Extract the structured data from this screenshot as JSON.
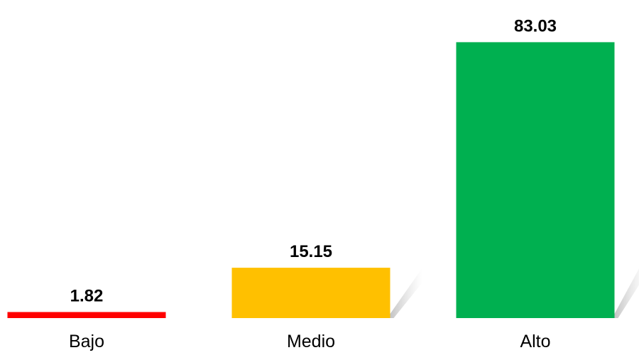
{
  "chart_data": {
    "type": "bar",
    "categories": [
      "Bajo",
      "Medio",
      "Alto"
    ],
    "values": [
      1.82,
      15.15,
      83.03
    ],
    "value_labels": [
      "1.82",
      "15.15",
      "83.03"
    ],
    "colors": [
      "#ff0000",
      "#ffc000",
      "#00b050"
    ],
    "title": "",
    "xlabel": "",
    "ylabel": "",
    "ylim": [
      0,
      100
    ],
    "grid": false,
    "legend": "none"
  }
}
